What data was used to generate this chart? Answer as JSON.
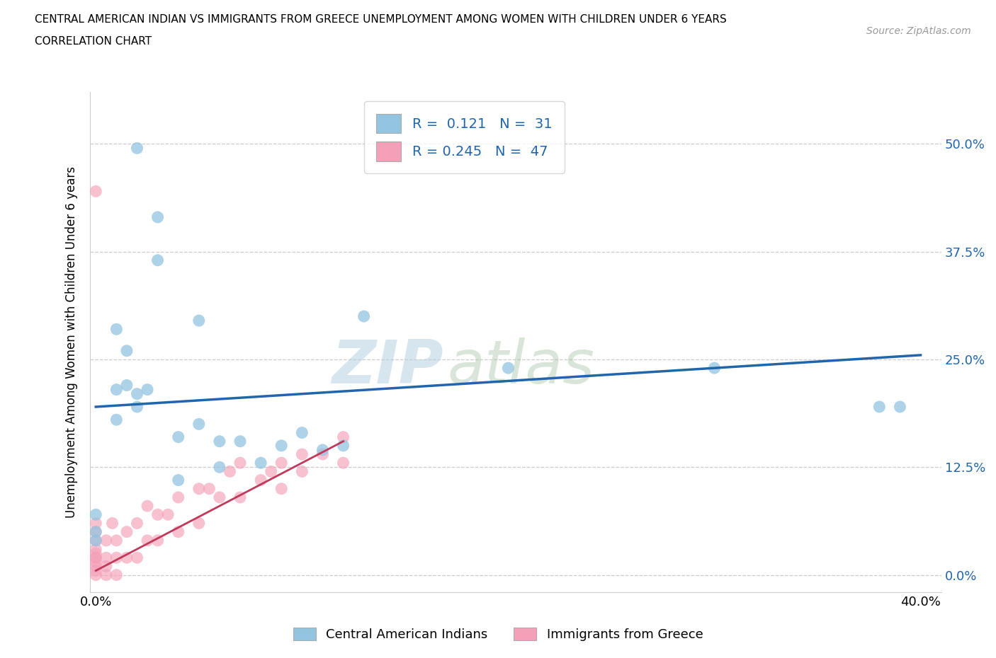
{
  "title_line1": "CENTRAL AMERICAN INDIAN VS IMMIGRANTS FROM GREECE UNEMPLOYMENT AMONG WOMEN WITH CHILDREN UNDER 6 YEARS",
  "title_line2": "CORRELATION CHART",
  "source": "Source: ZipAtlas.com",
  "ylabel": "Unemployment Among Women with Children Under 6 years",
  "xlim": [
    -0.003,
    0.41
  ],
  "ylim": [
    -0.02,
    0.56
  ],
  "yticks": [
    0.0,
    0.125,
    0.25,
    0.375,
    0.5
  ],
  "ytick_labels": [
    "0.0%",
    "12.5%",
    "25.0%",
    "37.5%",
    "50.0%"
  ],
  "xtick_positions": [
    0.0,
    0.4
  ],
  "xtick_labels": [
    "0.0%",
    "40.0%"
  ],
  "blue_color": "#93C4E0",
  "pink_color": "#F4A0B8",
  "blue_line_color": "#2166ac",
  "pink_line_color": "#c0395a",
  "watermark_zip": "ZIP",
  "watermark_atlas": "atlas",
  "blue_R": 0.121,
  "blue_N": 31,
  "pink_R": 0.245,
  "pink_N": 47,
  "blue_scatter_x": [
    0.02,
    0.03,
    0.03,
    0.05,
    0.01,
    0.015,
    0.015,
    0.01,
    0.02,
    0.01,
    0.13,
    0.2,
    0.3,
    0.38,
    0.39,
    0.02,
    0.025,
    0.05,
    0.04,
    0.06,
    0.07,
    0.09,
    0.1,
    0.11,
    0.12,
    0.08,
    0.06,
    0.04,
    0.0,
    0.0,
    0.0
  ],
  "blue_scatter_y": [
    0.495,
    0.415,
    0.365,
    0.295,
    0.285,
    0.26,
    0.22,
    0.215,
    0.21,
    0.18,
    0.3,
    0.24,
    0.24,
    0.195,
    0.195,
    0.195,
    0.215,
    0.175,
    0.16,
    0.155,
    0.155,
    0.15,
    0.165,
    0.145,
    0.15,
    0.13,
    0.125,
    0.11,
    0.07,
    0.05,
    0.04
  ],
  "pink_scatter_x": [
    0.0,
    0.0,
    0.0,
    0.0,
    0.0,
    0.0,
    0.0,
    0.0,
    0.0,
    0.0,
    0.0,
    0.0,
    0.005,
    0.005,
    0.005,
    0.005,
    0.008,
    0.01,
    0.01,
    0.01,
    0.015,
    0.015,
    0.02,
    0.02,
    0.025,
    0.025,
    0.03,
    0.03,
    0.035,
    0.04,
    0.04,
    0.05,
    0.05,
    0.055,
    0.06,
    0.065,
    0.07,
    0.07,
    0.08,
    0.085,
    0.09,
    0.09,
    0.1,
    0.1,
    0.11,
    0.12,
    0.12
  ],
  "pink_scatter_y": [
    0.0,
    0.005,
    0.01,
    0.015,
    0.02,
    0.025,
    0.03,
    0.04,
    0.05,
    0.06,
    0.445,
    0.02,
    0.0,
    0.01,
    0.02,
    0.04,
    0.06,
    0.0,
    0.02,
    0.04,
    0.02,
    0.05,
    0.02,
    0.06,
    0.04,
    0.08,
    0.04,
    0.07,
    0.07,
    0.05,
    0.09,
    0.06,
    0.1,
    0.1,
    0.09,
    0.12,
    0.09,
    0.13,
    0.11,
    0.12,
    0.1,
    0.13,
    0.12,
    0.14,
    0.14,
    0.13,
    0.16
  ],
  "blue_line_x": [
    0.0,
    0.4
  ],
  "blue_line_y": [
    0.195,
    0.255
  ],
  "pink_line_x": [
    0.0,
    0.12
  ],
  "pink_line_y": [
    0.005,
    0.155
  ]
}
